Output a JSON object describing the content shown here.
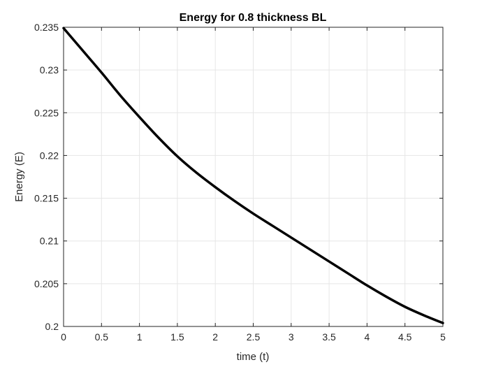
{
  "chart_data": {
    "type": "line",
    "title": "Energy for 0.8 thickness BL",
    "xlabel": "time (t)",
    "ylabel": "Energy (E)",
    "xlim": [
      0,
      5
    ],
    "ylim": [
      0.2,
      0.235
    ],
    "xticks": [
      0,
      0.5,
      1,
      1.5,
      2,
      2.5,
      3,
      3.5,
      4,
      4.5,
      5
    ],
    "xtick_labels": [
      "0",
      "0.5",
      "1",
      "1.5",
      "2",
      "2.5",
      "3",
      "3.5",
      "4",
      "4.5",
      "5"
    ],
    "yticks": [
      0.2,
      0.205,
      0.21,
      0.215,
      0.22,
      0.225,
      0.23,
      0.235
    ],
    "ytick_labels": [
      "0.2",
      "0.205",
      "0.21",
      "0.215",
      "0.22",
      "0.225",
      "0.23",
      "0.235"
    ],
    "grid": true,
    "series": [
      {
        "color": "#000000",
        "x": [
          0,
          0.25,
          0.5,
          0.75,
          1,
          1.25,
          1.5,
          1.75,
          2,
          2.25,
          2.5,
          2.75,
          3,
          3.25,
          3.5,
          3.75,
          4,
          4.25,
          4.5,
          4.75,
          5
        ],
        "y": [
          0.2349,
          0.2323,
          0.2297,
          0.227,
          0.2245,
          0.2221,
          0.2199,
          0.218,
          0.2163,
          0.2147,
          0.2132,
          0.2118,
          0.2104,
          0.209,
          0.2076,
          0.2062,
          0.2048,
          0.2035,
          0.2023,
          0.2013,
          0.2004
        ]
      }
    ]
  }
}
